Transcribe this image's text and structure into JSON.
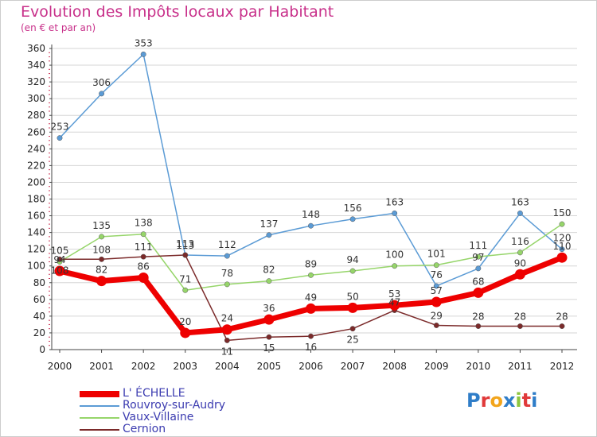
{
  "title": "Evolution des Impôts locaux par Habitant",
  "subtitle": "(en € et par an)",
  "logo": {
    "text": "Proxiti",
    "colors": [
      "#2f7dc8",
      "#e03a3a",
      "#f2a51c",
      "#2f7dc8",
      "#8dc63f",
      "#e03a3a",
      "#2f7dc8"
    ]
  },
  "chart_data": {
    "type": "line",
    "title": "Evolution des Impôts locaux par Habitant",
    "ylabel": "(en € et par an)",
    "xlabel": "",
    "ylim": [
      0,
      360
    ],
    "yticks": [
      0,
      20,
      40,
      60,
      80,
      100,
      120,
      140,
      160,
      180,
      200,
      220,
      240,
      260,
      280,
      300,
      320,
      340,
      360
    ],
    "x": [
      "2000",
      "2001",
      "2002",
      "2003",
      "2004",
      "2005",
      "2006",
      "2007",
      "2008",
      "2009",
      "2010",
      "2011",
      "2012"
    ],
    "grid": "horizontal",
    "series": [
      {
        "name": "Rouvroy-sur-Audry",
        "color": "#5b9bd5",
        "values": [
          253,
          306,
          353,
          113,
          112,
          137,
          148,
          156,
          163,
          76,
          97,
          163,
          120
        ]
      },
      {
        "name": "Vaux-Villaine",
        "color": "#96d56a",
        "values": [
          105,
          135,
          138,
          71,
          78,
          82,
          89,
          94,
          100,
          101,
          111,
          116,
          150
        ]
      },
      {
        "name": "Cernion",
        "color": "#7b2a2a",
        "values": [
          108,
          108,
          111,
          113,
          11,
          15,
          16,
          25,
          47,
          29,
          28,
          28,
          28
        ]
      },
      {
        "name": "L' ÉCHELLE",
        "color": "#ee0000",
        "values": [
          94,
          82,
          86,
          20,
          24,
          36,
          49,
          50,
          53,
          57,
          68,
          90,
          110
        ]
      }
    ],
    "legend_order": [
      "L' ÉCHELLE",
      "Rouvroy-sur-Audry",
      "Vaux-Villaine",
      "Cernion"
    ]
  }
}
